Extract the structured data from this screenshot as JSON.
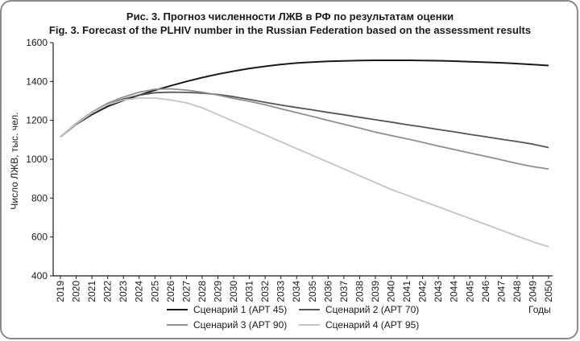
{
  "chart_data": {
    "type": "line",
    "title": "Рис. 3. Прогноз численности ЛЖВ в РФ по результатам оценки",
    "subtitle": "Fig. 3. Forecast of the PLHIV number in the Russian Federation based on the assessment results",
    "xlabel": "Годы",
    "ylabel": "Число ЛЖВ, тыс. чел.",
    "ylim": [
      400,
      1600
    ],
    "yticks": [
      400,
      600,
      800,
      1000,
      1200,
      1400,
      1600
    ],
    "grid": false,
    "legend_position": "bottom",
    "x": [
      2019,
      2020,
      2021,
      2022,
      2023,
      2024,
      2025,
      2026,
      2027,
      2028,
      2029,
      2030,
      2031,
      2032,
      2033,
      2034,
      2035,
      2036,
      2037,
      2038,
      2039,
      2040,
      2041,
      2042,
      2043,
      2044,
      2045,
      2046,
      2047,
      2048,
      2049,
      2050
    ],
    "series": [
      {
        "name": "Сценарий  1 (АРТ 45)",
        "color": "#1a1a1a",
        "width": 2,
        "values": [
          1115,
          1180,
          1230,
          1272,
          1303,
          1330,
          1355,
          1378,
          1400,
          1420,
          1438,
          1453,
          1467,
          1478,
          1488,
          1495,
          1500,
          1504,
          1506,
          1508,
          1509,
          1509,
          1509,
          1508,
          1507,
          1505,
          1502,
          1499,
          1496,
          1492,
          1487,
          1482
        ]
      },
      {
        "name": "Сценарий  2 (АРТ 70)",
        "color": "#555555",
        "width": 1.8,
        "values": [
          1115,
          1182,
          1236,
          1280,
          1310,
          1330,
          1342,
          1345,
          1344,
          1340,
          1333,
          1322,
          1308,
          1293,
          1279,
          1266,
          1254,
          1241,
          1229,
          1216,
          1203,
          1191,
          1178,
          1166,
          1153,
          1141,
          1128,
          1116,
          1103,
          1091,
          1078,
          1060
        ]
      },
      {
        "name": "Сценарий  3 (АРТ 90)",
        "color": "#8f8f8f",
        "width": 1.8,
        "values": [
          1115,
          1185,
          1242,
          1288,
          1320,
          1345,
          1360,
          1362,
          1356,
          1345,
          1330,
          1313,
          1298,
          1280,
          1260,
          1240,
          1220,
          1200,
          1180,
          1160,
          1140,
          1122,
          1105,
          1087,
          1068,
          1050,
          1032,
          1015,
          997,
          978,
          962,
          950
        ]
      },
      {
        "name": "Сценарий  4 (АРТ 95)",
        "color": "#c4c4c4",
        "width": 1.8,
        "values": [
          1115,
          1182,
          1238,
          1280,
          1305,
          1315,
          1315,
          1305,
          1290,
          1265,
          1230,
          1195,
          1160,
          1125,
          1090,
          1055,
          1020,
          985,
          950,
          915,
          880,
          845,
          815,
          785,
          755,
          725,
          695,
          665,
          635,
          605,
          575,
          550
        ]
      }
    ]
  }
}
